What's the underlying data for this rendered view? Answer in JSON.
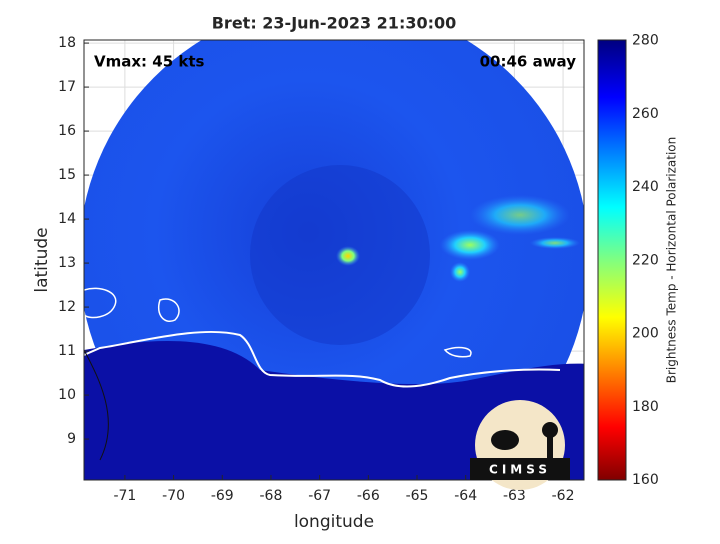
{
  "chart_data": {
    "type": "image-map",
    "title": "Bret: 23-Jun-2023 21:30:00",
    "annotations": [
      "Vmax: 45 kts",
      "00:46 away"
    ],
    "x_label": "longitude",
    "y_label": "latitude",
    "xlim": [
      -71.84,
      -61.57
    ],
    "xticks": [
      -71,
      -70,
      -69,
      -68,
      -67,
      -66,
      -65,
      -64,
      -63,
      -62
    ],
    "ylim": [
      8.07,
      18.07
    ],
    "yticks": [
      9,
      10,
      11,
      12,
      13,
      14,
      15,
      16,
      17,
      18
    ],
    "grid": true,
    "colorbar": {
      "label": "Brightness Temp - Horizontal Polarization",
      "clim": [
        160,
        280.2
      ],
      "ticks": [
        160,
        180,
        200,
        220,
        240,
        260,
        280
      ]
    },
    "logo": "CIMSS"
  }
}
